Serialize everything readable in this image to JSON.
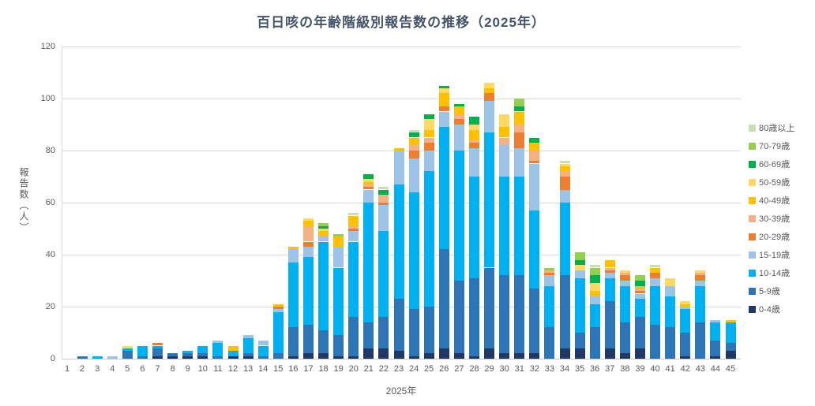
{
  "title": "百日咳の年齢階級別報告数の推移（2025年）",
  "chart_data": {
    "type": "bar",
    "stacked": true,
    "title": "百日咳の年齢階級別報告数の推移（2025年）",
    "xlabel": "2025年",
    "ylabel": "報告数（人）",
    "ylim": [
      0,
      120
    ],
    "yticks": [
      0,
      20,
      40,
      60,
      80,
      100,
      120
    ],
    "grid": true,
    "legend_position": "right",
    "categories": [
      "1",
      "2",
      "3",
      "4",
      "5",
      "6",
      "7",
      "8",
      "9",
      "10",
      "11",
      "12",
      "13",
      "14",
      "15",
      "16",
      "17",
      "18",
      "19",
      "20",
      "21",
      "22",
      "23",
      "24",
      "25",
      "26",
      "27",
      "28",
      "29",
      "30",
      "31",
      "32",
      "33",
      "34",
      "35",
      "36",
      "37",
      "38",
      "39",
      "40",
      "41",
      "42",
      "43",
      "44",
      "45"
    ],
    "series": [
      {
        "name": "0-4歳",
        "color": "#1f3864",
        "values": [
          0,
          0,
          0,
          0,
          0,
          0,
          1,
          1,
          1,
          1,
          0,
          1,
          1,
          0,
          0,
          1,
          2,
          2,
          1,
          1,
          4,
          4,
          3,
          1,
          2,
          4,
          2,
          1,
          4,
          2,
          2,
          2,
          0,
          4,
          4,
          0,
          4,
          2,
          4,
          0,
          0,
          1,
          0,
          1,
          3
        ]
      },
      {
        "name": "5-9歳",
        "color": "#2e75b6",
        "values": [
          0,
          1,
          0,
          0,
          3,
          1,
          3,
          1,
          1,
          1,
          1,
          0,
          1,
          1,
          2,
          11,
          11,
          9,
          8,
          15,
          10,
          12,
          20,
          18,
          18,
          38,
          28,
          30,
          31,
          30,
          30,
          25,
          12,
          28,
          6,
          12,
          18,
          12,
          12,
          13,
          12,
          9,
          14,
          6,
          3
        ]
      },
      {
        "name": "10-14歳",
        "color": "#00b0f0",
        "values": [
          0,
          0,
          1,
          0,
          1,
          4,
          1,
          0,
          1,
          3,
          5,
          2,
          6,
          4,
          16,
          25,
          26,
          34,
          26,
          29,
          46,
          33,
          44,
          45,
          52,
          47,
          50,
          39,
          52,
          38,
          38,
          30,
          16,
          28,
          21,
          9,
          9,
          14,
          7,
          15,
          12,
          9,
          14,
          7,
          8
        ]
      },
      {
        "name": "15-19歳",
        "color": "#9dc3e6",
        "values": [
          0,
          0,
          0,
          1,
          0,
          0,
          0,
          0,
          0,
          0,
          1,
          0,
          1,
          2,
          1,
          5,
          4,
          2,
          8,
          4,
          5,
          10,
          13,
          13,
          8,
          6,
          10,
          11,
          12,
          12,
          11,
          18,
          4,
          5,
          3,
          3,
          2,
          2,
          2,
          3,
          4,
          1,
          2,
          1,
          0
        ]
      },
      {
        "name": "20-29歳",
        "color": "#ed7d31",
        "values": [
          0,
          0,
          0,
          0,
          0,
          0,
          1,
          0,
          0,
          0,
          0,
          0,
          0,
          0,
          1,
          0,
          2,
          0,
          0,
          1,
          1,
          1,
          0,
          3,
          3,
          2,
          2,
          2,
          3,
          0,
          6,
          1,
          1,
          5,
          0,
          0,
          1,
          2,
          1,
          2,
          0,
          0,
          2,
          0,
          0
        ]
      },
      {
        "name": "30-39歳",
        "color": "#f4b183",
        "values": [
          0,
          0,
          0,
          0,
          0,
          0,
          0,
          0,
          0,
          0,
          0,
          0,
          0,
          0,
          0,
          0,
          6,
          0,
          0,
          1,
          1,
          3,
          0,
          2,
          2,
          0,
          2,
          1,
          0,
          3,
          3,
          4,
          1,
          2,
          0,
          0,
          1,
          1,
          1,
          0,
          0,
          0,
          1,
          0,
          0
        ]
      },
      {
        "name": "40-49歳",
        "color": "#ffc000",
        "values": [
          0,
          0,
          0,
          0,
          0,
          0,
          0,
          0,
          0,
          0,
          0,
          2,
          0,
          0,
          1,
          1,
          2,
          2,
          4,
          4,
          1,
          0,
          1,
          3,
          3,
          5,
          3,
          4,
          2,
          4,
          5,
          3,
          0,
          2,
          0,
          2,
          3,
          0,
          1,
          2,
          0,
          1,
          0,
          0,
          1
        ]
      },
      {
        "name": "50-59歳",
        "color": "#ffd966",
        "values": [
          0,
          0,
          0,
          0,
          1,
          0,
          0,
          0,
          0,
          0,
          0,
          0,
          0,
          0,
          0,
          0,
          1,
          1,
          0,
          0,
          1,
          0,
          0,
          0,
          4,
          2,
          0,
          2,
          2,
          5,
          0,
          0,
          0,
          1,
          2,
          3,
          0,
          1,
          0,
          0,
          3,
          1,
          1,
          0,
          0
        ]
      },
      {
        "name": "60-69歳",
        "color": "#00b050",
        "values": [
          0,
          0,
          0,
          0,
          0,
          0,
          0,
          0,
          0,
          0,
          0,
          0,
          0,
          0,
          0,
          0,
          0,
          1,
          0,
          0,
          2,
          2,
          0,
          2,
          2,
          1,
          1,
          3,
          0,
          0,
          2,
          2,
          0,
          0,
          2,
          3,
          0,
          0,
          2,
          0,
          0,
          0,
          0,
          0,
          0
        ]
      },
      {
        "name": "70-79歳",
        "color": "#92d050",
        "values": [
          0,
          0,
          0,
          0,
          0,
          0,
          0,
          0,
          0,
          0,
          0,
          0,
          0,
          0,
          0,
          0,
          0,
          1,
          1,
          0,
          0,
          0,
          0,
          0,
          0,
          0,
          0,
          0,
          0,
          0,
          3,
          0,
          1,
          0,
          3,
          3,
          0,
          0,
          2,
          0,
          0,
          0,
          0,
          0,
          0
        ]
      },
      {
        "name": "80歳以上",
        "color": "#c6e0b4",
        "values": [
          0,
          0,
          0,
          0,
          0,
          0,
          0,
          0,
          0,
          0,
          0,
          0,
          0,
          0,
          0,
          0,
          0,
          0,
          0,
          1,
          0,
          1,
          0,
          1,
          0,
          0,
          0,
          0,
          0,
          0,
          0,
          0,
          0,
          1,
          0,
          1,
          0,
          0,
          0,
          1,
          0,
          0,
          0,
          0,
          0
        ]
      }
    ]
  },
  "legend": {
    "items_top_to_bottom": [
      "80歳以上",
      "70-79歳",
      "60-69歳",
      "50-59歳",
      "40-49歳",
      "30-39歳",
      "20-29歳",
      "15-19歳",
      "10-14歳",
      "5-9歳",
      "0-4歳"
    ]
  }
}
